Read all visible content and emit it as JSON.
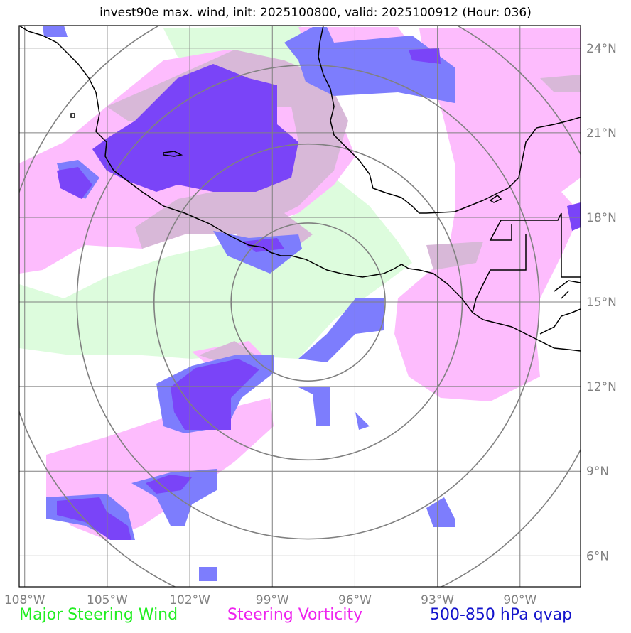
{
  "title": "invest90e max. wind, init: 2025100800, valid: 2025100912 (Hour: 036)",
  "map": {
    "lon_range": [
      -108.2,
      -87.8
    ],
    "lat_range": [
      4.9,
      24.8
    ],
    "lon_ticks": [
      {
        "value": -108,
        "label": "108°W"
      },
      {
        "value": -105,
        "label": "105°W"
      },
      {
        "value": -102,
        "label": "102°W"
      },
      {
        "value": -99,
        "label": "99°W"
      },
      {
        "value": -96,
        "label": "96°W"
      },
      {
        "value": -93,
        "label": "93°W"
      },
      {
        "value": -90,
        "label": "90°W"
      }
    ],
    "lat_ticks": [
      {
        "value": 6,
        "label": "6°N"
      },
      {
        "value": 9,
        "label": "9°N"
      },
      {
        "value": 12,
        "label": "12°N"
      },
      {
        "value": 15,
        "label": "15°N"
      },
      {
        "value": 18,
        "label": "18°N"
      },
      {
        "value": 21,
        "label": "21°N"
      },
      {
        "value": 24,
        "label": "24°N"
      }
    ],
    "storm_center": {
      "lon": -97.7,
      "lat": 15.0
    },
    "range_rings_deg": [
      2.8,
      5.6,
      8.4,
      11.2
    ],
    "colors": {
      "wind": "#ddfcdd",
      "vorticity": "#fdbcfd",
      "overlap": "#d8b8d8",
      "qvap": "#7d7dfd",
      "qvap_vort": "#7a44f8",
      "coast": "#000000",
      "grid": "#808080"
    }
  },
  "legend": {
    "wind": {
      "label": "Major Steering Wind",
      "color": "#22ee22"
    },
    "vorticity": {
      "label": "Steering Vorticity",
      "color": "#ee22ee"
    },
    "qvap": {
      "label": "500-850 hPa qvap",
      "color": "#1515cc"
    }
  }
}
